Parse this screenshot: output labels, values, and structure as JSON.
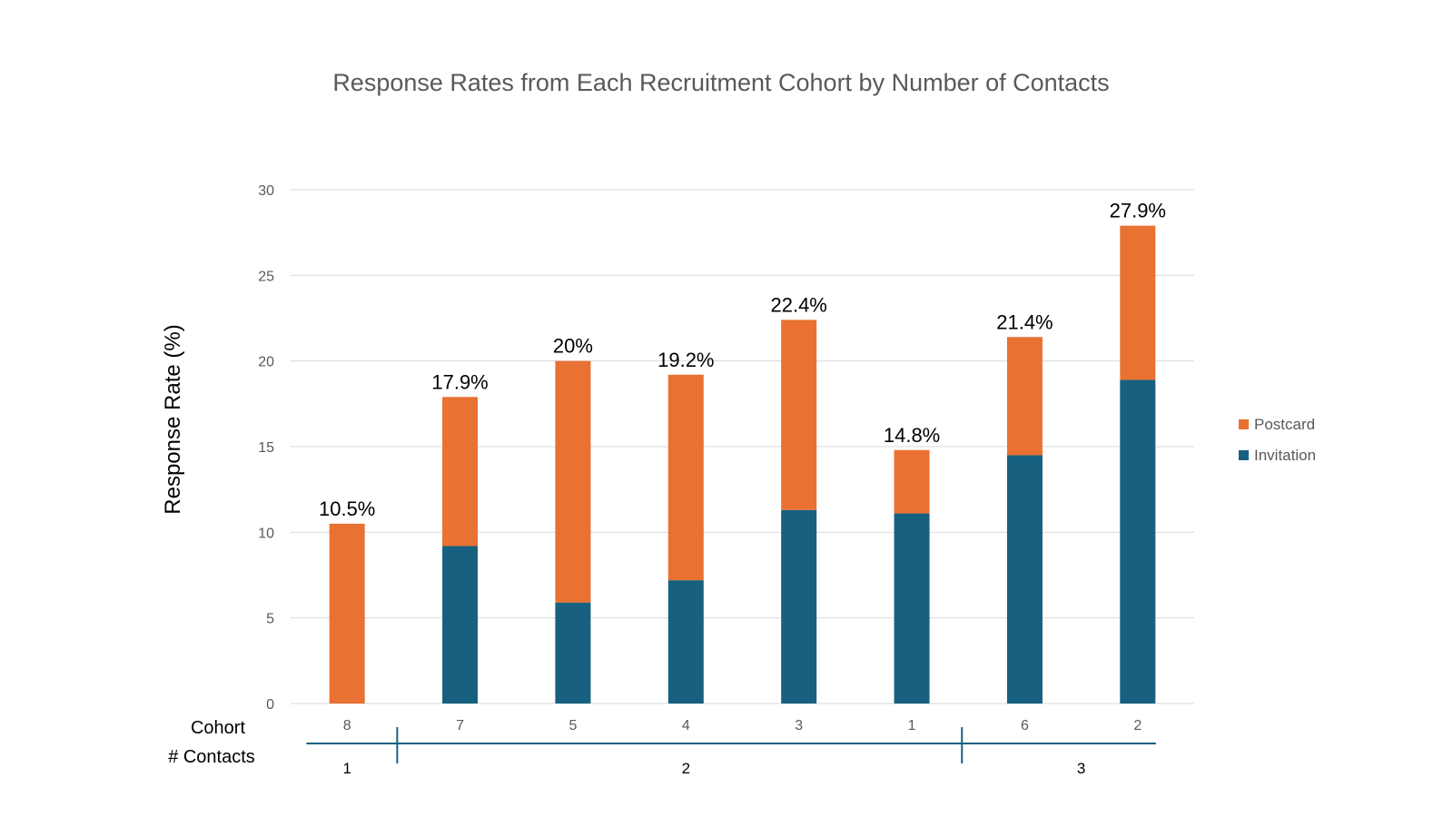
{
  "chart_data": {
    "type": "bar",
    "stacked": true,
    "title": "Response Rates from Each Recruitment Cohort by Number of Contacts",
    "ylabel": "Response Rate (%)",
    "xlabel": "",
    "ylim": [
      0,
      30
    ],
    "yticks": [
      0,
      5,
      10,
      15,
      20,
      25,
      30
    ],
    "grid": true,
    "legend_position": "right",
    "categories": [
      "8",
      "7",
      "5",
      "4",
      "3",
      "1",
      "6",
      "2"
    ],
    "series": [
      {
        "name": "Invitation",
        "color": "#17607f",
        "values": [
          0,
          9.2,
          5.9,
          7.2,
          11.3,
          11.1,
          14.5,
          18.9
        ]
      },
      {
        "name": "Postcard",
        "color": "#e97132",
        "values": [
          10.5,
          8.7,
          14.1,
          12.0,
          11.1,
          3.7,
          6.9,
          9.0
        ]
      }
    ],
    "data_labels": [
      "10.5%",
      "17.9%",
      "20%",
      "19.2%",
      "22.4%",
      "14.8%",
      "21.4%",
      "27.9%"
    ],
    "axis_row_labels": {
      "category": "Cohort",
      "group": "# Contacts"
    },
    "groups": [
      {
        "label": "1",
        "categories": [
          "8"
        ]
      },
      {
        "label": "2",
        "categories": [
          "7",
          "5",
          "4",
          "3",
          "1"
        ]
      },
      {
        "label": "3",
        "categories": [
          "6",
          "2"
        ]
      }
    ],
    "legend_order": [
      "Postcard",
      "Invitation"
    ],
    "axis_line_color": "#17607f"
  }
}
